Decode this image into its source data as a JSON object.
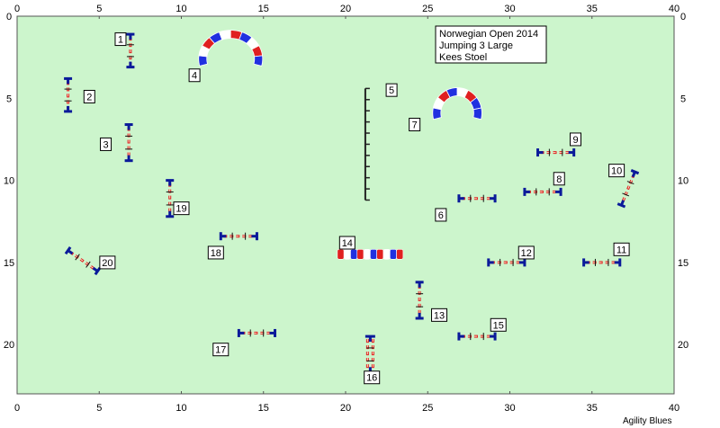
{
  "info": {
    "line1": "Norwegian Open 2014",
    "line2": "Jumping 3 Large",
    "line3": "Kees Stoel"
  },
  "brand": "Agility Blues",
  "colors": {
    "field": "#ccf5cc",
    "bar_blue": "#0a1a9a",
    "bar_red": "#e02020",
    "tunnel_blue": "#2030e0",
    "tunnel_red": "#e02020",
    "wall_dark": "#222222"
  },
  "axis": {
    "x_ticks": [
      "0",
      "5",
      "10",
      "15",
      "20",
      "25",
      "30",
      "35",
      "40"
    ],
    "y_ticks": [
      "0",
      "5",
      "10",
      "15",
      "20"
    ],
    "x_range": [
      0,
      40
    ],
    "y_range": [
      0,
      23
    ]
  },
  "obstacles": [
    {
      "num": "1",
      "type": "jump",
      "x": 6.9,
      "y": 2.1,
      "angle": 90,
      "len": 2.0,
      "lx": 6.3,
      "ly": 1.4
    },
    {
      "num": "2",
      "type": "jump",
      "x": 3.1,
      "y": 4.8,
      "angle": 90,
      "len": 2.0,
      "lx": 4.4,
      "ly": 4.9
    },
    {
      "num": "3",
      "type": "jump",
      "x": 6.8,
      "y": 7.7,
      "angle": 90,
      "len": 2.2,
      "lx": 5.4,
      "ly": 7.8
    },
    {
      "num": "4",
      "type": "tunnel",
      "x": 13.0,
      "y": 2.6,
      "rx": 3.4,
      "ry": 1.5,
      "segs": 10,
      "lx": 10.8,
      "ly": 3.6
    },
    {
      "num": "5",
      "type": "wall",
      "x": 21.2,
      "y": 7.8,
      "angle": 90,
      "len": 6.8,
      "lx": 22.8,
      "ly": 4.5
    },
    {
      "num": "6",
      "type": "jump",
      "x": 28.0,
      "y": 11.1,
      "angle": 0,
      "len": 2.2,
      "lx": 25.8,
      "ly": 12.1
    },
    {
      "num": "7",
      "type": "tunnel",
      "x": 26.8,
      "y": 5.9,
      "rx": 2.5,
      "ry": 1.3,
      "segs": 8,
      "lx": 24.2,
      "ly": 6.6
    },
    {
      "num": "8",
      "type": "jump",
      "x": 32.0,
      "y": 10.7,
      "angle": 0,
      "len": 2.2,
      "lx": 33.0,
      "ly": 9.9
    },
    {
      "num": "9",
      "type": "jump",
      "x": 32.8,
      "y": 8.3,
      "angle": 0,
      "len": 2.2,
      "lx": 34.0,
      "ly": 7.5
    },
    {
      "num": "10",
      "type": "jump",
      "x": 37.2,
      "y": 10.5,
      "angle": 112,
      "len": 2.2,
      "lx": 36.5,
      "ly": 9.4
    },
    {
      "num": "11",
      "type": "jump",
      "x": 35.6,
      "y": 15.0,
      "angle": 0,
      "len": 2.2,
      "lx": 36.8,
      "ly": 14.2
    },
    {
      "num": "12",
      "type": "jump",
      "x": 29.8,
      "y": 15.0,
      "angle": 0,
      "len": 2.2,
      "lx": 31.0,
      "ly": 14.4
    },
    {
      "num": "13",
      "type": "jump",
      "x": 24.5,
      "y": 17.3,
      "angle": 90,
      "len": 2.2,
      "lx": 25.7,
      "ly": 18.2
    },
    {
      "num": "14",
      "type": "tube",
      "x": 21.5,
      "y": 14.5,
      "len": 4.0,
      "segs": 10,
      "lx": 20.1,
      "ly": 13.8
    },
    {
      "num": "15",
      "type": "jump",
      "x": 28.0,
      "y": 19.5,
      "angle": 0,
      "len": 2.2,
      "lx": 29.3,
      "ly": 18.8
    },
    {
      "num": "16",
      "type": "double",
      "x": 21.5,
      "y": 20.6,
      "angle": 90,
      "len": 2.2,
      "lx": 21.6,
      "ly": 22.0
    },
    {
      "num": "17",
      "type": "jump",
      "x": 14.6,
      "y": 19.3,
      "angle": 0,
      "len": 2.2,
      "lx": 12.4,
      "ly": 20.3
    },
    {
      "num": "18",
      "type": "jump",
      "x": 13.5,
      "y": 13.4,
      "angle": 0,
      "len": 2.2,
      "lx": 12.1,
      "ly": 14.4
    },
    {
      "num": "19",
      "type": "jump",
      "x": 9.3,
      "y": 11.1,
      "angle": 90,
      "len": 2.2,
      "lx": 10.0,
      "ly": 11.7
    },
    {
      "num": "20",
      "type": "jump",
      "x": 4.0,
      "y": 14.9,
      "angle": 35,
      "len": 2.2,
      "lx": 5.5,
      "ly": 15.0
    }
  ]
}
